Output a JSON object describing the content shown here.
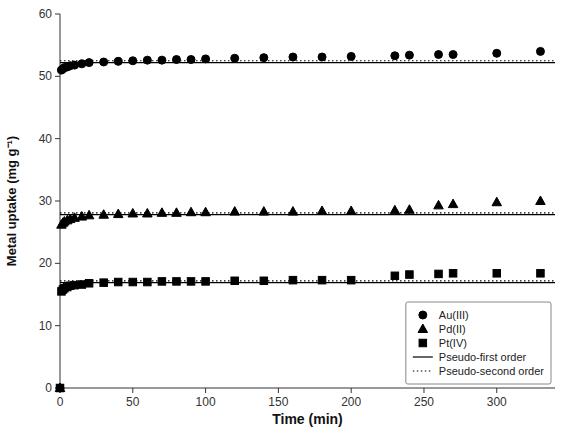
{
  "chart_data": {
    "type": "scatter",
    "xlabel": "Time (min)",
    "ylabel": "Metal uptake (mg g⁻¹)",
    "xlim": [
      0,
      340
    ],
    "ylim": [
      0,
      60
    ],
    "xticks": [
      0,
      50,
      100,
      150,
      200,
      250,
      300
    ],
    "yticks": [
      0,
      10,
      20,
      30,
      40,
      50,
      60
    ],
    "grid": false,
    "legend": "lower right",
    "color": "#000000",
    "series": [
      {
        "name": "Au(III)",
        "type": "scatter",
        "marker": "circle",
        "x": [
          0,
          1,
          2,
          3,
          5,
          7,
          10,
          15,
          20,
          30,
          40,
          50,
          60,
          70,
          80,
          90,
          100,
          120,
          140,
          160,
          180,
          200,
          230,
          240,
          260,
          270,
          300,
          330
        ],
        "values": [
          0,
          51.0,
          51.2,
          51.4,
          51.5,
          51.7,
          51.8,
          52.0,
          52.2,
          52.3,
          52.4,
          52.5,
          52.6,
          52.6,
          52.7,
          52.7,
          52.8,
          52.9,
          53.0,
          53.1,
          53.1,
          53.2,
          53.3,
          53.4,
          53.5,
          53.5,
          53.7,
          54.0
        ]
      },
      {
        "name": "Pd(II)",
        "type": "scatter",
        "marker": "triangle",
        "x": [
          0,
          1,
          2,
          3,
          5,
          7,
          10,
          15,
          20,
          30,
          40,
          50,
          60,
          70,
          80,
          90,
          100,
          120,
          140,
          160,
          180,
          200,
          230,
          240,
          260,
          270,
          300,
          330
        ],
        "values": [
          0,
          26.2,
          26.5,
          26.7,
          26.9,
          27.1,
          27.3,
          27.5,
          27.7,
          27.8,
          27.9,
          28.0,
          28.0,
          28.1,
          28.1,
          28.2,
          28.2,
          28.3,
          28.3,
          28.3,
          28.4,
          28.4,
          28.5,
          28.6,
          29.3,
          29.5,
          29.8,
          30.0
        ]
      },
      {
        "name": "Pt(IV)",
        "type": "scatter",
        "marker": "square",
        "x": [
          0,
          1,
          2,
          3,
          5,
          7,
          10,
          15,
          20,
          30,
          40,
          50,
          60,
          70,
          80,
          90,
          100,
          120,
          140,
          160,
          180,
          200,
          230,
          240,
          260,
          270,
          300,
          330
        ],
        "values": [
          0,
          15.5,
          15.8,
          16.0,
          16.2,
          16.4,
          16.5,
          16.6,
          16.8,
          16.9,
          17.0,
          17.0,
          17.0,
          17.1,
          17.1,
          17.1,
          17.1,
          17.2,
          17.2,
          17.3,
          17.3,
          17.3,
          18.0,
          18.2,
          18.3,
          18.4,
          18.4,
          18.4
        ]
      },
      {
        "name": "Pseudo-first order",
        "type": "hline",
        "line_style": "solid",
        "values": [
          52.2,
          27.8,
          16.9
        ]
      },
      {
        "name": "Pseudo-second order",
        "type": "hline",
        "line_style": "dotted",
        "values": [
          52.5,
          28.1,
          17.2
        ]
      }
    ]
  }
}
